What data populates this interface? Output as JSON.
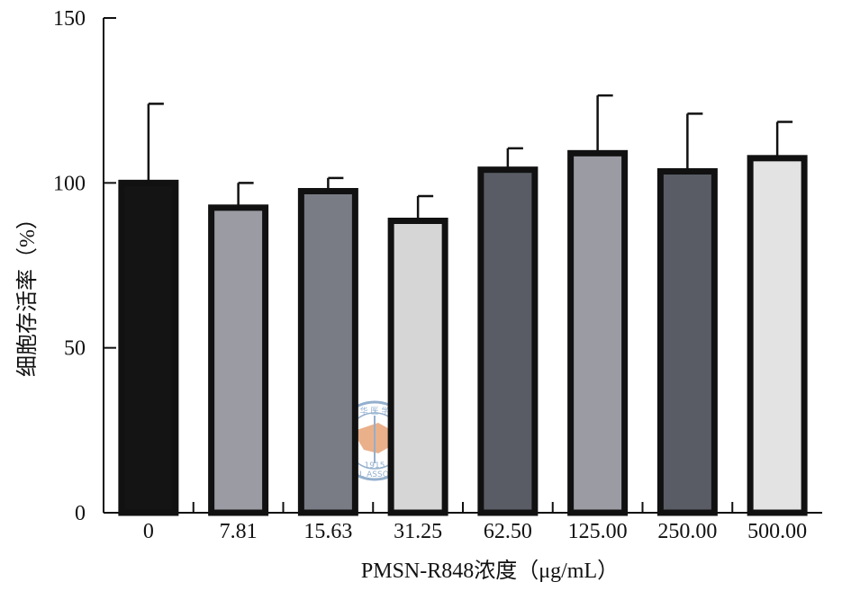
{
  "chart_data": {
    "type": "bar",
    "categories": [
      "0",
      "7.81",
      "15.63",
      "31.25",
      "62.50",
      "125.00",
      "250.00",
      "500.00"
    ],
    "values": [
      100,
      92.5,
      97.5,
      88.5,
      104,
      109,
      103.5,
      107.5
    ],
    "errors": [
      24,
      7.5,
      4,
      7.5,
      6.5,
      17.5,
      17.5,
      11
    ],
    "bar_colors": [
      "#141414",
      "#9a9ba3",
      "#797c84",
      "#d6d6d6",
      "#595c64",
      "#9a9ba3",
      "#595c64",
      "#e3e3e3"
    ],
    "xlabel": "PMSN-R848浓度（μg/mL）",
    "ylabel": "细胞存活率（%）",
    "ylim": [
      0,
      150
    ],
    "yticks": [
      "0",
      "50",
      "100",
      "150"
    ],
    "grid": false
  },
  "watermark": {
    "text_top": "华 医 学",
    "text_bottom": "MEDICAL ASSOCIATION",
    "year": "1915"
  }
}
